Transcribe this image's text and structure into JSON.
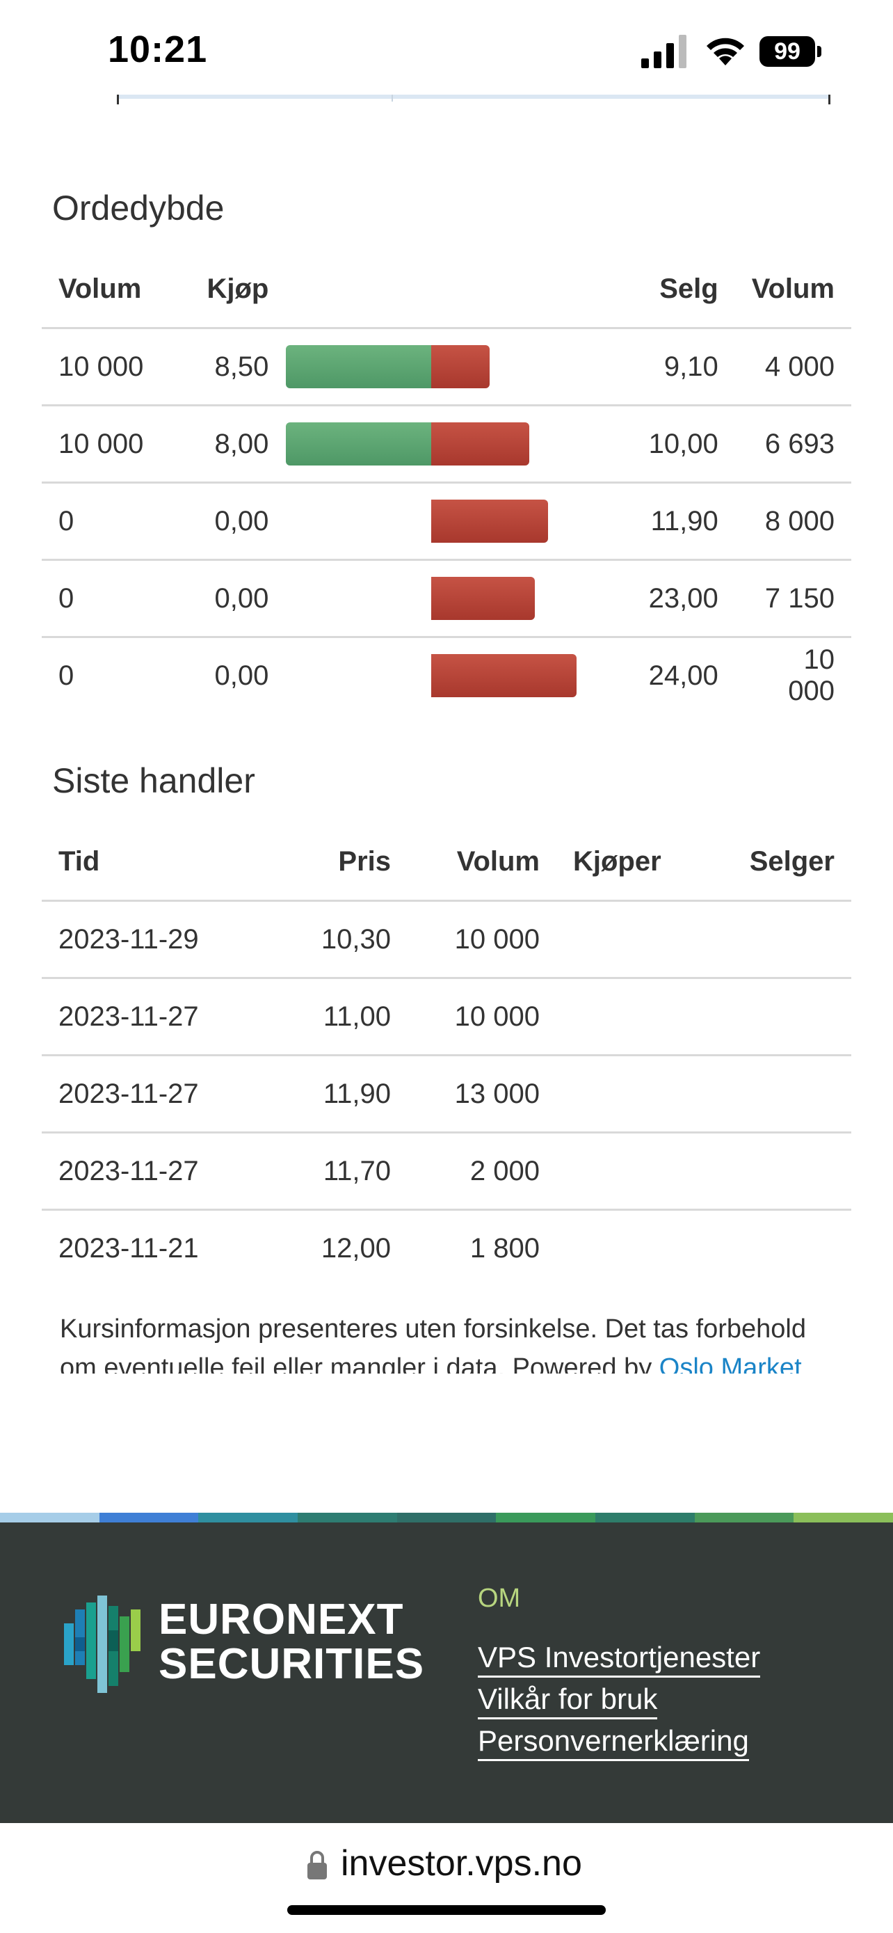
{
  "status_bar": {
    "time": "10:21",
    "battery": "99"
  },
  "order_depth": {
    "title": "Ordedybde",
    "headers": {
      "buy_volume": "Volum",
      "buy": "Kjøp",
      "sell": "Selg",
      "sell_volume": "Volum"
    },
    "rows": [
      {
        "buy_volume": "10 000",
        "buy_price": "8,50",
        "sell_price": "9,10",
        "sell_volume": "4 000",
        "buy_bar": 0.55,
        "sell_bar": 0.22
      },
      {
        "buy_volume": "10 000",
        "buy_price": "8,00",
        "sell_price": "10,00",
        "sell_volume": "6 693",
        "buy_bar": 0.55,
        "sell_bar": 0.37
      },
      {
        "buy_volume": "0",
        "buy_price": "0,00",
        "sell_price": "11,90",
        "sell_volume": "8 000",
        "buy_bar": 0,
        "sell_bar": 0.44
      },
      {
        "buy_volume": "0",
        "buy_price": "0,00",
        "sell_price": "23,00",
        "sell_volume": "7 150",
        "buy_bar": 0,
        "sell_bar": 0.39
      },
      {
        "buy_volume": "0",
        "buy_price": "0,00",
        "sell_price": "24,00",
        "sell_volume": "10 000",
        "buy_bar": 0,
        "sell_bar": 0.55
      }
    ]
  },
  "trades": {
    "title": "Siste handler",
    "headers": {
      "time": "Tid",
      "price": "Pris",
      "volume": "Volum",
      "buyer": "Kjøper",
      "seller": "Selger"
    },
    "rows": [
      {
        "time": "2023-11-29",
        "price": "10,30",
        "volume": "10 000",
        "buyer": "",
        "seller": ""
      },
      {
        "time": "2023-11-27",
        "price": "11,00",
        "volume": "10 000",
        "buyer": "",
        "seller": ""
      },
      {
        "time": "2023-11-27",
        "price": "11,90",
        "volume": "13 000",
        "buyer": "",
        "seller": ""
      },
      {
        "time": "2023-11-27",
        "price": "11,70",
        "volume": "2 000",
        "buyer": "",
        "seller": ""
      },
      {
        "time": "2023-11-21",
        "price": "12,00",
        "volume": "1 800",
        "buyer": "",
        "seller": ""
      }
    ]
  },
  "disclaimer": {
    "text": "Kursinformasjon presenteres uten forsinkelse. Det tas forbehold om eventuelle feil eller mangler i data. Powered by ",
    "link": "Oslo Market"
  },
  "footer": {
    "logo_line1": "EURONEXT",
    "logo_line2": "SECURITIES",
    "section_title": "OM",
    "links": [
      "VPS Investortjenester",
      "Vilkår for bruk",
      "Personvernerklæring"
    ],
    "stripe_colors": [
      "#a6cde8",
      "#3f7fd6",
      "#2f8fa0",
      "#2e7d72",
      "#2f6f68",
      "#3a9a5b",
      "#2e7d6a",
      "#4b9a5a",
      "#8bbf5a"
    ]
  },
  "url_bar": {
    "url": "investor.vps.no"
  },
  "colors": {
    "buy_bar": "#5aa672",
    "sell_bar": "#b5433a",
    "link": "#1a84c7",
    "footer_bg": "#343a38",
    "footer_accent": "#b7d57f"
  }
}
